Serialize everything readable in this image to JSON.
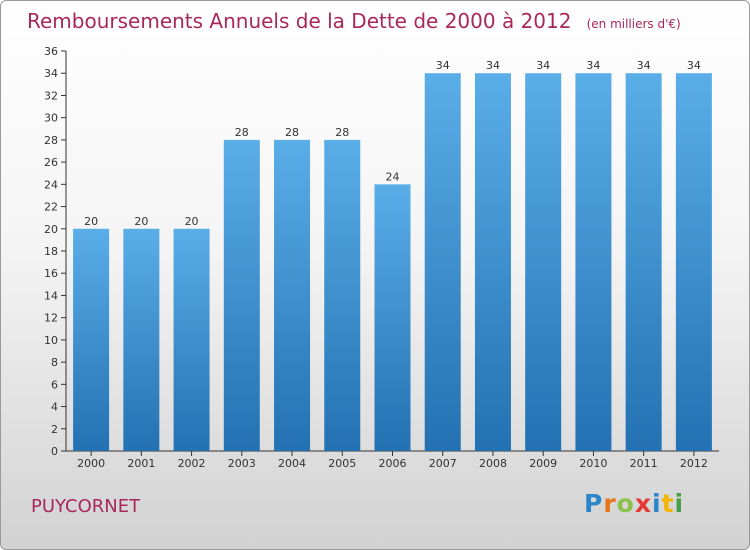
{
  "header": {
    "title": "Remboursements Annuels de la Dette de 2000 à 2012",
    "subtitle": "(en milliers d'€)"
  },
  "footer": {
    "town": "PUYCORNET",
    "logo_letters": [
      "P",
      "r",
      "o",
      "x",
      "i",
      "t",
      "i"
    ]
  },
  "colors": {
    "title": "#a8285a",
    "bar_top": "#5aaee8",
    "bar_bottom": "#2371b2",
    "logo": [
      "#2b86c9",
      "#e8741a",
      "#8bc34a",
      "#e53935",
      "#2b86c9",
      "#f4b400",
      "#43a047"
    ]
  },
  "chart_data": {
    "type": "bar",
    "categories": [
      "2000",
      "2001",
      "2002",
      "2003",
      "2004",
      "2005",
      "2006",
      "2007",
      "2008",
      "2009",
      "2010",
      "2011",
      "2012"
    ],
    "values": [
      20,
      20,
      20,
      28,
      28,
      28,
      24,
      34,
      34,
      34,
      34,
      34,
      34
    ],
    "ylim": [
      0,
      36
    ],
    "yticks": [
      0,
      2,
      4,
      6,
      8,
      10,
      12,
      14,
      16,
      18,
      20,
      22,
      24,
      26,
      28,
      30,
      32,
      34,
      36
    ],
    "grid": false,
    "data_labels": true
  }
}
